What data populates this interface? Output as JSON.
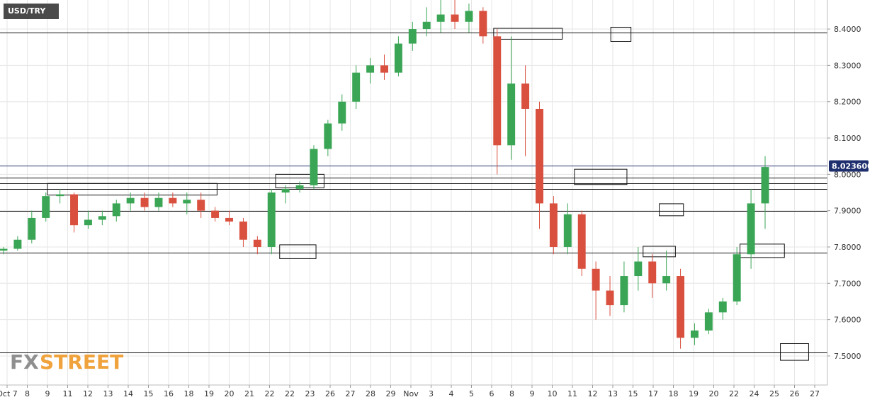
{
  "symbol": "USD/TRY",
  "logo": {
    "part1": "FX",
    "part2": "STREET"
  },
  "current_price_label": "8.023600",
  "colors": {
    "up": "#3aa655",
    "down": "#d9503f",
    "grid": "#e6e6e6",
    "level_line": "#111111",
    "price_line": "#1f2f6e",
    "price_tag_bg": "#1f2f6e"
  },
  "chart_data": {
    "type": "candlestick",
    "title": "USD/TRY",
    "y_ticks": [
      {
        "value": 7.5,
        "label": "7.5000"
      },
      {
        "value": 7.6,
        "label": "7.6000"
      },
      {
        "value": 7.7,
        "label": "7.7000"
      },
      {
        "value": 7.8,
        "label": "7.8000"
      },
      {
        "value": 7.9,
        "label": "7.9000"
      },
      {
        "value": 8.0,
        "label": "8.0000"
      },
      {
        "value": 8.1,
        "label": "8.1000"
      },
      {
        "value": 8.2,
        "label": "8.2000"
      },
      {
        "value": 8.3,
        "label": "8.3000"
      },
      {
        "value": 8.4,
        "label": "8.4000"
      }
    ],
    "x_ticks": [
      "Oct 7",
      "8",
      "9",
      "11",
      "12",
      "13",
      "14",
      "15",
      "16",
      "18",
      "19",
      "20",
      "21",
      "22",
      "22",
      "23",
      "26",
      "27",
      "28",
      "29",
      "Nov",
      "3",
      "4",
      "5",
      "6",
      "8",
      "9",
      "10",
      "11",
      "12",
      "13",
      "15",
      "17",
      "18",
      "19",
      "20",
      "22",
      "24",
      "25",
      "26",
      "27"
    ],
    "y_range": [
      7.42,
      8.48
    ],
    "horizontal_levels": [
      8.39,
      7.99,
      7.975,
      7.96,
      7.9,
      7.785,
      7.51
    ],
    "current_price": 8.0236,
    "boxes": [
      {
        "x0": 2.0,
        "x1": 10.4,
        "y0": 7.943,
        "y1": 7.975
      },
      {
        "x0": 13.3,
        "x1": 15.7,
        "y0": 7.963,
        "y1": 8.0
      },
      {
        "x0": 13.5,
        "x1": 15.3,
        "y0": 7.768,
        "y1": 7.806
      },
      {
        "x0": 24.1,
        "x1": 27.5,
        "y0": 8.372,
        "y1": 8.402
      },
      {
        "x0": 29.9,
        "x1": 30.9,
        "y0": 8.366,
        "y1": 8.405
      },
      {
        "x0": 28.1,
        "x1": 30.7,
        "y0": 7.972,
        "y1": 8.014
      },
      {
        "x0": 32.3,
        "x1": 33.5,
        "y0": 7.886,
        "y1": 7.919
      },
      {
        "x0": 31.5,
        "x1": 33.1,
        "y0": 7.773,
        "y1": 7.802
      },
      {
        "x0": 36.3,
        "x1": 38.5,
        "y0": 7.771,
        "y1": 7.808
      },
      {
        "x0": 38.3,
        "x1": 39.7,
        "y0": 7.488,
        "y1": 7.534
      }
    ],
    "candles": [
      [
        7.79,
        7.8,
        7.78,
        7.795
      ],
      [
        7.795,
        7.83,
        7.79,
        7.82
      ],
      [
        7.82,
        7.9,
        7.81,
        7.88
      ],
      [
        7.88,
        7.95,
        7.87,
        7.94
      ],
      [
        7.94,
        7.96,
        7.92,
        7.945
      ],
      [
        7.945,
        7.95,
        7.84,
        7.86
      ],
      [
        7.86,
        7.9,
        7.85,
        7.875
      ],
      [
        7.875,
        7.9,
        7.86,
        7.885
      ],
      [
        7.885,
        7.93,
        7.87,
        7.92
      ],
      [
        7.92,
        7.95,
        7.9,
        7.935
      ],
      [
        7.935,
        7.95,
        7.9,
        7.91
      ],
      [
        7.91,
        7.95,
        7.9,
        7.935
      ],
      [
        7.935,
        7.95,
        7.91,
        7.92
      ],
      [
        7.92,
        7.95,
        7.89,
        7.93
      ],
      [
        7.93,
        7.95,
        7.88,
        7.9
      ],
      [
        7.9,
        7.91,
        7.87,
        7.88
      ],
      [
        7.88,
        7.9,
        7.86,
        7.87
      ],
      [
        7.87,
        7.88,
        7.8,
        7.82
      ],
      [
        7.82,
        7.83,
        7.78,
        7.8
      ],
      [
        7.8,
        7.96,
        7.78,
        7.95
      ],
      [
        7.95,
        7.97,
        7.92,
        7.96
      ],
      [
        7.96,
        7.98,
        7.95,
        7.97
      ],
      [
        7.97,
        8.08,
        7.96,
        8.07
      ],
      [
        8.07,
        8.15,
        8.05,
        8.14
      ],
      [
        8.14,
        8.22,
        8.12,
        8.2
      ],
      [
        8.2,
        8.3,
        8.18,
        8.28
      ],
      [
        8.28,
        8.32,
        8.25,
        8.3
      ],
      [
        8.3,
        8.33,
        8.26,
        8.28
      ],
      [
        8.28,
        8.38,
        8.27,
        8.36
      ],
      [
        8.36,
        8.42,
        8.34,
        8.4
      ],
      [
        8.4,
        8.46,
        8.38,
        8.42
      ],
      [
        8.42,
        8.48,
        8.39,
        8.44
      ],
      [
        8.44,
        8.48,
        8.4,
        8.42
      ],
      [
        8.42,
        8.47,
        8.39,
        8.45
      ],
      [
        8.45,
        8.46,
        8.36,
        8.38
      ],
      [
        8.38,
        8.4,
        8.0,
        8.08
      ],
      [
        8.08,
        8.38,
        8.04,
        8.25
      ],
      [
        8.25,
        8.3,
        8.05,
        8.18
      ],
      [
        8.18,
        8.2,
        7.85,
        7.92
      ],
      [
        7.92,
        7.94,
        7.78,
        7.8
      ],
      [
        7.8,
        7.92,
        7.78,
        7.89
      ],
      [
        7.89,
        7.9,
        7.72,
        7.74
      ],
      [
        7.74,
        7.76,
        7.6,
        7.68
      ],
      [
        7.68,
        7.72,
        7.61,
        7.64
      ],
      [
        7.64,
        7.76,
        7.62,
        7.72
      ],
      [
        7.72,
        7.8,
        7.68,
        7.76
      ],
      [
        7.76,
        7.78,
        7.66,
        7.7
      ],
      [
        7.7,
        7.79,
        7.68,
        7.72
      ],
      [
        7.72,
        7.74,
        7.52,
        7.55
      ],
      [
        7.55,
        7.59,
        7.53,
        7.57
      ],
      [
        7.57,
        7.63,
        7.56,
        7.62
      ],
      [
        7.62,
        7.66,
        7.6,
        7.65
      ],
      [
        7.65,
        7.8,
        7.64,
        7.78
      ],
      [
        7.78,
        7.96,
        7.74,
        7.92
      ],
      [
        7.92,
        8.05,
        7.85,
        8.02
      ]
    ]
  }
}
